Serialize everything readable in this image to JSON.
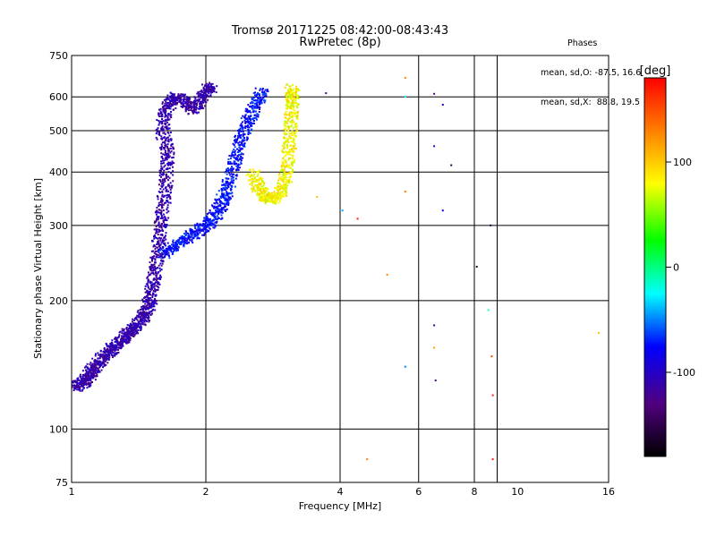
{
  "header": {
    "title_line1": "Tromsø 20171225 08:42:00-08:43:43",
    "title_line2": "RwPretec (8p)"
  },
  "phase_info": {
    "heading": "Phases",
    "line_o": "mean, sd,O: -87.5, 16.6",
    "line_x": "mean, sd,X:  88.8, 19.5"
  },
  "chart_data": {
    "type": "scatter",
    "x_scale": "log",
    "y_scale": "log",
    "xlabel": "Frequency [MHz]",
    "ylabel": "Stationary phase Virtual Height [km]",
    "xlim": [
      1,
      16
    ],
    "ylim": [
      75,
      750
    ],
    "x_ticks": [
      1,
      2,
      4,
      6,
      8,
      10,
      16
    ],
    "y_ticks": [
      75,
      100,
      200,
      300,
      400,
      500,
      600,
      750
    ],
    "x_grid": [
      2,
      4,
      6,
      8,
      9
    ],
    "y_grid": [
      100,
      200,
      300,
      400,
      500,
      600
    ],
    "grid": true,
    "colorbar": {
      "label": "[deg]",
      "range": [
        -180,
        180
      ],
      "ticks": [
        100,
        0,
        -100
      ],
      "colors": [
        "#ff0000",
        "#ff8000",
        "#ffff00",
        "#00ff00",
        "#00ffff",
        "#0000ff",
        "#500080",
        "#000000"
      ]
    },
    "series": [
      {
        "trace": "o_low",
        "points": [
          [
            1.02,
            125
          ],
          [
            1.05,
            128
          ],
          [
            1.08,
            130
          ],
          [
            1.1,
            135
          ],
          [
            1.13,
            140
          ],
          [
            1.16,
            145
          ],
          [
            1.2,
            150
          ],
          [
            1.24,
            155
          ],
          [
            1.28,
            160
          ],
          [
            1.32,
            165
          ],
          [
            1.36,
            170
          ],
          [
            1.4,
            175
          ],
          [
            1.44,
            182
          ],
          [
            1.48,
            190
          ],
          [
            1.5,
            200
          ],
          [
            1.52,
            215
          ],
          [
            1.54,
            235
          ],
          [
            1.56,
            260
          ],
          [
            1.58,
            290
          ],
          [
            1.6,
            320
          ],
          [
            1.62,
            360
          ],
          [
            1.64,
            410
          ],
          [
            1.64,
            450
          ],
          [
            1.6,
            500
          ],
          [
            1.62,
            545
          ],
          [
            1.66,
            580
          ],
          [
            1.72,
            600
          ],
          [
            1.8,
            580
          ],
          [
            1.88,
            560
          ],
          [
            1.95,
            590
          ],
          [
            2.02,
            620
          ],
          [
            2.06,
            635
          ]
        ],
        "phase": -100
      },
      {
        "trace": "o_upper",
        "points": [
          [
            1.62,
            258
          ],
          [
            1.7,
            268
          ],
          [
            1.8,
            278
          ],
          [
            1.9,
            288
          ],
          [
            2.0,
            298
          ],
          [
            2.08,
            312
          ],
          [
            2.15,
            330
          ],
          [
            2.2,
            350
          ],
          [
            2.26,
            380
          ],
          [
            2.32,
            420
          ],
          [
            2.38,
            460
          ],
          [
            2.45,
            500
          ],
          [
            2.52,
            540
          ],
          [
            2.6,
            580
          ],
          [
            2.68,
            620
          ]
        ],
        "phase": -60
      },
      {
        "trace": "x_trace",
        "points": [
          [
            2.55,
            400
          ],
          [
            2.62,
            370
          ],
          [
            2.7,
            352
          ],
          [
            2.8,
            345
          ],
          [
            2.9,
            352
          ],
          [
            3.0,
            375
          ],
          [
            3.05,
            410
          ],
          [
            3.08,
            460
          ],
          [
            3.1,
            510
          ],
          [
            3.12,
            560
          ],
          [
            3.14,
            600
          ],
          [
            3.12,
            630
          ]
        ],
        "phase": 100
      }
    ],
    "scattered_points": [
      [
        3.55,
        350,
        120
      ],
      [
        3.72,
        612,
        -120
      ],
      [
        4.05,
        325,
        -20
      ],
      [
        4.38,
        311,
        170
      ],
      [
        4.6,
        85,
        140
      ],
      [
        5.1,
        230,
        140
      ],
      [
        5.6,
        665,
        140
      ],
      [
        5.6,
        600,
        0
      ],
      [
        5.6,
        360,
        140
      ],
      [
        5.6,
        140,
        -30
      ],
      [
        6.5,
        610,
        -120
      ],
      [
        6.5,
        460,
        -90
      ],
      [
        6.5,
        175,
        -100
      ],
      [
        6.5,
        155,
        130
      ],
      [
        6.55,
        130,
        -110
      ],
      [
        6.8,
        575,
        -80
      ],
      [
        6.8,
        325,
        -60
      ],
      [
        7.1,
        415,
        -150
      ],
      [
        8.1,
        240,
        -160
      ],
      [
        8.6,
        190,
        10
      ],
      [
        8.7,
        300,
        -150
      ],
      [
        8.75,
        148,
        160
      ],
      [
        8.8,
        120,
        170
      ],
      [
        8.8,
        85,
        170
      ],
      [
        15.2,
        168,
        120
      ]
    ]
  }
}
